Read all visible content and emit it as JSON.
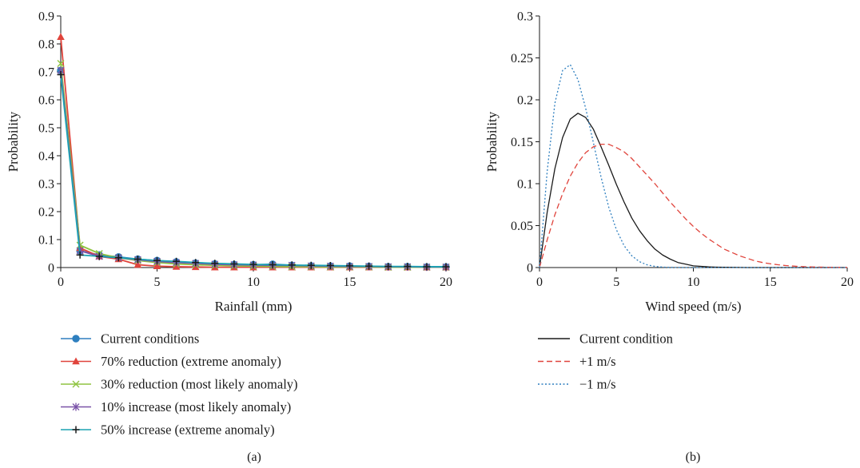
{
  "chart_data": [
    {
      "type": "line",
      "panel_label": "(a)",
      "xlabel": "Rainfall (mm)",
      "ylabel": "Probability",
      "xlim": [
        0,
        20
      ],
      "ylim": [
        0,
        0.9
      ],
      "xticks": [
        0,
        5,
        10,
        15,
        20
      ],
      "yticks": [
        0,
        0.1,
        0.2,
        0.3,
        0.4,
        0.5,
        0.6,
        0.7,
        0.8,
        0.9
      ],
      "xtick_labels": [
        "0",
        "5",
        "10",
        "15",
        "20"
      ],
      "ytick_labels": [
        "0",
        "0.1",
        "0.2",
        "0.3",
        "0.4",
        "0.5",
        "0.6",
        "0.7",
        "0.8",
        "0.9"
      ],
      "grid": false,
      "legend_position": "bottom",
      "x": [
        0,
        1,
        2,
        3,
        4,
        5,
        6,
        7,
        8,
        9,
        10,
        11,
        12,
        13,
        14,
        15,
        16,
        17,
        18,
        19,
        20
      ],
      "series": [
        {
          "name": "Current conditions",
          "color": "#2e7fbf",
          "marker": "circle",
          "values": [
            0.705,
            0.06,
            0.045,
            0.038,
            0.03,
            0.025,
            0.02,
            0.016,
            0.013,
            0.011,
            0.01,
            0.012,
            0.008,
            0.006,
            0.005,
            0.005,
            0.004,
            0.003,
            0.003,
            0.002,
            0.002
          ]
        },
        {
          "name": "70% reduction (extreme anomaly)",
          "color": "#e0443c",
          "marker": "triangle",
          "values": [
            0.825,
            0.07,
            0.04,
            0.03,
            0.01,
            0.005,
            0.003,
            0.002,
            0.001,
            0.001,
            0.001,
            0.001,
            0.001,
            0.001,
            0.001,
            0.001,
            0.001,
            0.001,
            0.001,
            0.001,
            0.001
          ]
        },
        {
          "name": "30% reduction (most likely anomaly)",
          "color": "#8fc440",
          "marker": "x",
          "values": [
            0.73,
            0.08,
            0.05,
            0.035,
            0.025,
            0.018,
            0.013,
            0.01,
            0.008,
            0.006,
            0.005,
            0.004,
            0.003,
            0.003,
            0.002,
            0.002,
            0.002,
            0.001,
            0.001,
            0.001,
            0.001
          ]
        },
        {
          "name": "10% increase (most likely anomaly)",
          "color": "#7a52a8",
          "marker": "star",
          "values": [
            0.705,
            0.06,
            0.04,
            0.035,
            0.028,
            0.022,
            0.018,
            0.015,
            0.012,
            0.01,
            0.009,
            0.008,
            0.008,
            0.006,
            0.005,
            0.004,
            0.004,
            0.003,
            0.003,
            0.002,
            0.002
          ]
        },
        {
          "name": "50% increase (extreme anomaly)",
          "color": "#1ba3b2",
          "marker": "plus",
          "values": [
            0.69,
            0.045,
            0.04,
            0.035,
            0.03,
            0.025,
            0.022,
            0.018,
            0.015,
            0.013,
            0.011,
            0.01,
            0.009,
            0.008,
            0.007,
            0.006,
            0.005,
            0.004,
            0.004,
            0.003,
            0.003
          ]
        }
      ]
    },
    {
      "type": "line",
      "panel_label": "(b)",
      "xlabel": "Wind speed (m/s)",
      "ylabel": "Probability",
      "xlim": [
        0,
        20
      ],
      "ylim": [
        0,
        0.3
      ],
      "xticks": [
        0,
        5,
        10,
        15,
        20
      ],
      "yticks": [
        0,
        0.05,
        0.1,
        0.15,
        0.2,
        0.25,
        0.3
      ],
      "xtick_labels": [
        "0",
        "5",
        "10",
        "15",
        "20"
      ],
      "ytick_labels": [
        "0",
        "0.05",
        "0.1",
        "0.15",
        "0.2",
        "0.25",
        "0.3"
      ],
      "grid": false,
      "legend_position": "bottom",
      "x": [
        0,
        0.5,
        1,
        1.5,
        2,
        2.5,
        3,
        3.5,
        4,
        4.5,
        5,
        5.5,
        6,
        6.5,
        7,
        7.5,
        8,
        8.5,
        9,
        9.5,
        10,
        10.5,
        11,
        11.5,
        12,
        12.5,
        13,
        13.5,
        14,
        14.5,
        15,
        15.5,
        16,
        16.5,
        17,
        17.5,
        18,
        18.5,
        19,
        19.5,
        20
      ],
      "series": [
        {
          "name": "Current condition",
          "color": "#1a1a1a",
          "dash": "solid",
          "values": [
            0,
            0.066,
            0.118,
            0.155,
            0.177,
            0.184,
            0.179,
            0.165,
            0.144,
            0.122,
            0.099,
            0.078,
            0.059,
            0.044,
            0.032,
            0.022,
            0.015,
            0.01,
            0.006,
            0.004,
            0.002,
            0.0014,
            0.0008,
            0.0005,
            0.0003,
            0.0002,
            0.0001,
            0,
            0,
            0,
            0,
            0,
            0,
            0,
            0,
            0,
            0,
            0,
            0,
            0,
            0
          ]
        },
        {
          "name": "+1 m/s",
          "color": "#e0443c",
          "dash": "dashed",
          "values": [
            0,
            0.033,
            0.063,
            0.088,
            0.109,
            0.125,
            0.137,
            0.144,
            0.147,
            0.147,
            0.143,
            0.138,
            0.13,
            0.12,
            0.11,
            0.1,
            0.089,
            0.078,
            0.068,
            0.058,
            0.049,
            0.041,
            0.034,
            0.028,
            0.022,
            0.018,
            0.014,
            0.011,
            0.008,
            0.006,
            0.0045,
            0.0033,
            0.0024,
            0.0017,
            0.0012,
            0.0008,
            0.0006,
            0.0004,
            0.0003,
            0.0002,
            0.0001
          ]
        },
        {
          "name": "−1 m/s",
          "color": "#2e7fbf",
          "dash": "dotted",
          "values": [
            0,
            0.115,
            0.196,
            0.235,
            0.242,
            0.224,
            0.19,
            0.149,
            0.108,
            0.072,
            0.045,
            0.026,
            0.014,
            0.007,
            0.0032,
            0.0014,
            0.0005,
            0.0002,
            0.0001,
            0,
            0,
            0,
            0,
            0,
            0,
            0,
            0,
            0,
            0,
            0,
            0,
            0,
            0,
            0,
            0,
            0,
            0,
            0,
            0,
            0,
            0
          ]
        }
      ]
    }
  ]
}
